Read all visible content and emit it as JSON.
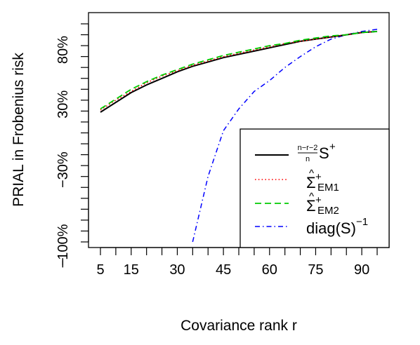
{
  "chart_data": {
    "type": "line",
    "title": "",
    "xlabel": "Covariance rank r",
    "ylabel": "PRIAL in Frobenius risk",
    "xlim": [
      5,
      95
    ],
    "ylim": [
      -100,
      100
    ],
    "x_ticks": [
      5,
      15,
      30,
      45,
      60,
      75,
      90
    ],
    "x_minor_ticks": [
      5,
      10,
      15,
      20,
      25,
      30,
      35,
      40,
      45,
      50,
      55,
      60,
      65,
      70,
      75,
      80,
      85,
      90,
      95
    ],
    "y_ticks": [
      {
        "value": 80,
        "label": "80%"
      },
      {
        "value": 30,
        "label": "30%"
      },
      {
        "value": -30,
        "label": "−30%"
      },
      {
        "value": -100,
        "label": "−100%"
      }
    ],
    "y_minor_ticks": [
      100,
      90,
      80,
      70,
      60,
      50,
      40,
      30,
      20,
      10,
      0,
      -10,
      -20,
      -30,
      -40,
      -50,
      -60,
      -70,
      -80,
      -90,
      -100
    ],
    "y_extra_label": "−",
    "grid": false,
    "legend_position": "bottom-right",
    "series": [
      {
        "name": "n−r−2/n S+",
        "color": "#000000",
        "style": "solid",
        "x": [
          5,
          10,
          15,
          20,
          25,
          30,
          35,
          40,
          45,
          50,
          55,
          60,
          65,
          70,
          75,
          80,
          85,
          90,
          95
        ],
        "y": [
          19,
          28,
          37,
          44,
          50,
          56,
          61,
          65,
          69,
          72,
          75,
          78,
          81,
          84,
          86,
          88,
          90,
          92,
          93
        ]
      },
      {
        "name": "Σ̂+ EM1",
        "color": "#ff0000",
        "style": "dotted",
        "x": [
          5,
          10,
          15,
          20,
          25,
          30,
          35,
          40,
          45,
          50,
          55,
          60,
          65,
          70,
          75,
          80,
          85,
          90,
          95
        ],
        "y": [
          21,
          30,
          38,
          46,
          52,
          57,
          62,
          66,
          70,
          73,
          76,
          79,
          82,
          84,
          86,
          88,
          90,
          92,
          93
        ]
      },
      {
        "name": "Σ̂+ EM2",
        "color": "#00cc00",
        "style": "dashed",
        "x": [
          5,
          10,
          15,
          20,
          25,
          30,
          35,
          40,
          45,
          50,
          55,
          60,
          65,
          70,
          75,
          80,
          85,
          90,
          95
        ],
        "y": [
          22,
          31,
          40,
          47,
          53,
          58,
          63,
          67,
          71,
          74,
          77,
          80,
          82,
          85,
          87,
          89,
          90,
          92,
          93
        ]
      },
      {
        "name": "diag(S)−1",
        "color": "#0000ff",
        "style": "dashdot",
        "x": [
          35,
          40,
          45,
          50,
          55,
          60,
          65,
          70,
          75,
          80,
          85,
          90,
          95
        ],
        "y": [
          -100,
          -40,
          2,
          22,
          38,
          48,
          60,
          70,
          79,
          86,
          90,
          93,
          95
        ]
      }
    ],
    "legend": {
      "items": [
        {
          "prefix_num": "n−r−2",
          "prefix_den": "n",
          "main": "S",
          "sup": "+"
        },
        {
          "hat": "^",
          "main": "Σ",
          "sup": "+",
          "sub": "EM1"
        },
        {
          "hat": "^",
          "main": "Σ",
          "sup": "+",
          "sub": "EM2"
        },
        {
          "main": "diag(S)",
          "sup": "−1"
        }
      ]
    }
  }
}
